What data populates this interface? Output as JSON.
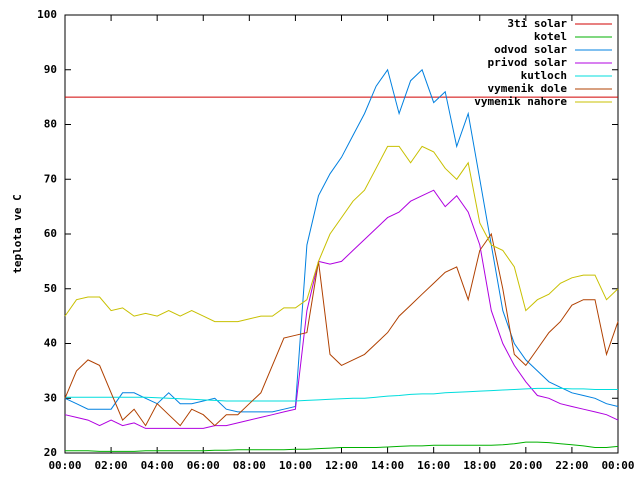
{
  "chart_data": {
    "type": "line",
    "ylabel": "teplota ve C",
    "x": [
      0,
      0.5,
      1,
      1.5,
      2,
      2.5,
      3,
      3.5,
      4,
      4.5,
      5,
      5.5,
      6,
      6.5,
      7,
      7.5,
      8,
      8.5,
      9,
      9.5,
      10,
      10.5,
      11,
      11.5,
      12,
      12.5,
      13,
      13.5,
      14,
      14.5,
      15,
      15.5,
      16,
      16.5,
      17,
      17.5,
      18,
      18.5,
      19,
      19.5,
      20,
      20.5,
      21,
      21.5,
      22,
      22.5,
      23,
      23.5,
      24
    ],
    "xlim": [
      0,
      24
    ],
    "xticks": [
      {
        "value": 0,
        "label": "00:00"
      },
      {
        "value": 2,
        "label": "02:00"
      },
      {
        "value": 4,
        "label": "04:00"
      },
      {
        "value": 6,
        "label": "06:00"
      },
      {
        "value": 8,
        "label": "08:00"
      },
      {
        "value": 10,
        "label": "10:00"
      },
      {
        "value": 12,
        "label": "12:00"
      },
      {
        "value": 14,
        "label": "14:00"
      },
      {
        "value": 16,
        "label": "16:00"
      },
      {
        "value": 18,
        "label": "18:00"
      },
      {
        "value": 20,
        "label": "20:00"
      },
      {
        "value": 22,
        "label": "22:00"
      },
      {
        "value": 24,
        "label": "00:00"
      }
    ],
    "ylim": [
      20,
      100
    ],
    "yticks": [
      20,
      30,
      40,
      50,
      60,
      70,
      80,
      90,
      100
    ],
    "legend": "top-right",
    "series": [
      {
        "name": "3ti solar",
        "color": "#d00000",
        "values": [
          85,
          85,
          85,
          85,
          85,
          85,
          85,
          85,
          85,
          85,
          85,
          85,
          85,
          85,
          85,
          85,
          85,
          85,
          85,
          85,
          85,
          85,
          85,
          85,
          85,
          85,
          85,
          85,
          85,
          85,
          85,
          85,
          85,
          85,
          85,
          85,
          85,
          85,
          85,
          85,
          85,
          85,
          85,
          85,
          85,
          85,
          85,
          85,
          85
        ]
      },
      {
        "name": "kotel",
        "color": "#00b000",
        "values": [
          20.4,
          20.4,
          20.4,
          20.3,
          20.3,
          20.3,
          20.3,
          20.4,
          20.4,
          20.4,
          20.4,
          20.4,
          20.4,
          20.5,
          20.5,
          20.6,
          20.6,
          20.6,
          20.6,
          20.6,
          20.7,
          20.7,
          20.8,
          20.9,
          21,
          21,
          21,
          21,
          21.1,
          21.2,
          21.3,
          21.3,
          21.4,
          21.4,
          21.4,
          21.4,
          21.4,
          21.4,
          21.5,
          21.7,
          22,
          22,
          21.9,
          21.7,
          21.5,
          21.3,
          21,
          21,
          21.2
        ]
      },
      {
        "name": "odvod solar",
        "color": "#0080e0",
        "values": [
          30,
          29,
          28,
          28,
          28,
          31,
          31,
          30,
          29,
          31,
          29,
          29,
          29.5,
          30,
          28,
          27.5,
          27.5,
          27.5,
          27.5,
          28,
          28.5,
          58,
          67,
          71,
          74,
          78,
          82,
          87,
          90,
          82,
          88,
          90,
          84,
          86,
          76,
          82,
          70,
          58,
          46,
          40,
          37,
          35,
          33,
          32,
          31,
          30.5,
          30,
          29,
          28.5
        ]
      },
      {
        "name": "privod solar",
        "color": "#b000e0",
        "values": [
          27,
          26.5,
          26,
          25,
          26,
          25,
          25.5,
          24.5,
          24.5,
          24.5,
          24.5,
          24.5,
          24.5,
          25,
          25,
          25.5,
          26,
          26.5,
          27,
          27.5,
          28,
          46,
          55,
          54.5,
          55,
          57,
          59,
          61,
          63,
          64,
          66,
          67,
          68,
          65,
          67,
          64,
          58,
          46,
          40,
          36,
          33,
          30.5,
          30,
          29,
          28.5,
          28,
          27.5,
          27,
          26
        ]
      },
      {
        "name": "kutloch",
        "color": "#00dddd",
        "values": [
          30.2,
          30.2,
          30.2,
          30.2,
          30.2,
          30.2,
          30.2,
          30.2,
          30.1,
          30,
          29.9,
          29.8,
          29.7,
          29.6,
          29.5,
          29.5,
          29.5,
          29.5,
          29.5,
          29.5,
          29.5,
          29.6,
          29.7,
          29.8,
          29.9,
          30,
          30,
          30.2,
          30.4,
          30.5,
          30.7,
          30.8,
          30.8,
          31,
          31.1,
          31.2,
          31.3,
          31.4,
          31.5,
          31.6,
          31.7,
          31.8,
          31.8,
          31.8,
          31.7,
          31.7,
          31.6,
          31.6,
          31.6
        ]
      },
      {
        "name": "vymenik dole",
        "color": "#b04000",
        "values": [
          30,
          35,
          37,
          36,
          31,
          26,
          28,
          25,
          29,
          27,
          25,
          28,
          27,
          25,
          27,
          27,
          29,
          31,
          36,
          41,
          41.5,
          42,
          55,
          38,
          36,
          37,
          38,
          40,
          42,
          45,
          47,
          49,
          51,
          53,
          54,
          48,
          57,
          60,
          50,
          38,
          36,
          39,
          42,
          44,
          47,
          48,
          48,
          38,
          44
        ]
      },
      {
        "name": "vymenik nahore",
        "color": "#c8c000",
        "values": [
          45,
          48,
          48.5,
          48.5,
          46,
          46.5,
          45,
          45.5,
          45,
          46,
          45,
          46,
          45,
          44,
          44,
          44,
          44.5,
          45,
          45,
          46.5,
          46.5,
          48,
          55,
          60,
          63,
          66,
          68,
          72,
          76,
          76,
          73,
          76,
          75,
          72,
          70,
          73,
          62,
          58,
          57,
          54,
          46,
          48,
          49,
          51,
          52,
          52.5,
          52.5,
          48,
          50
        ]
      }
    ]
  }
}
